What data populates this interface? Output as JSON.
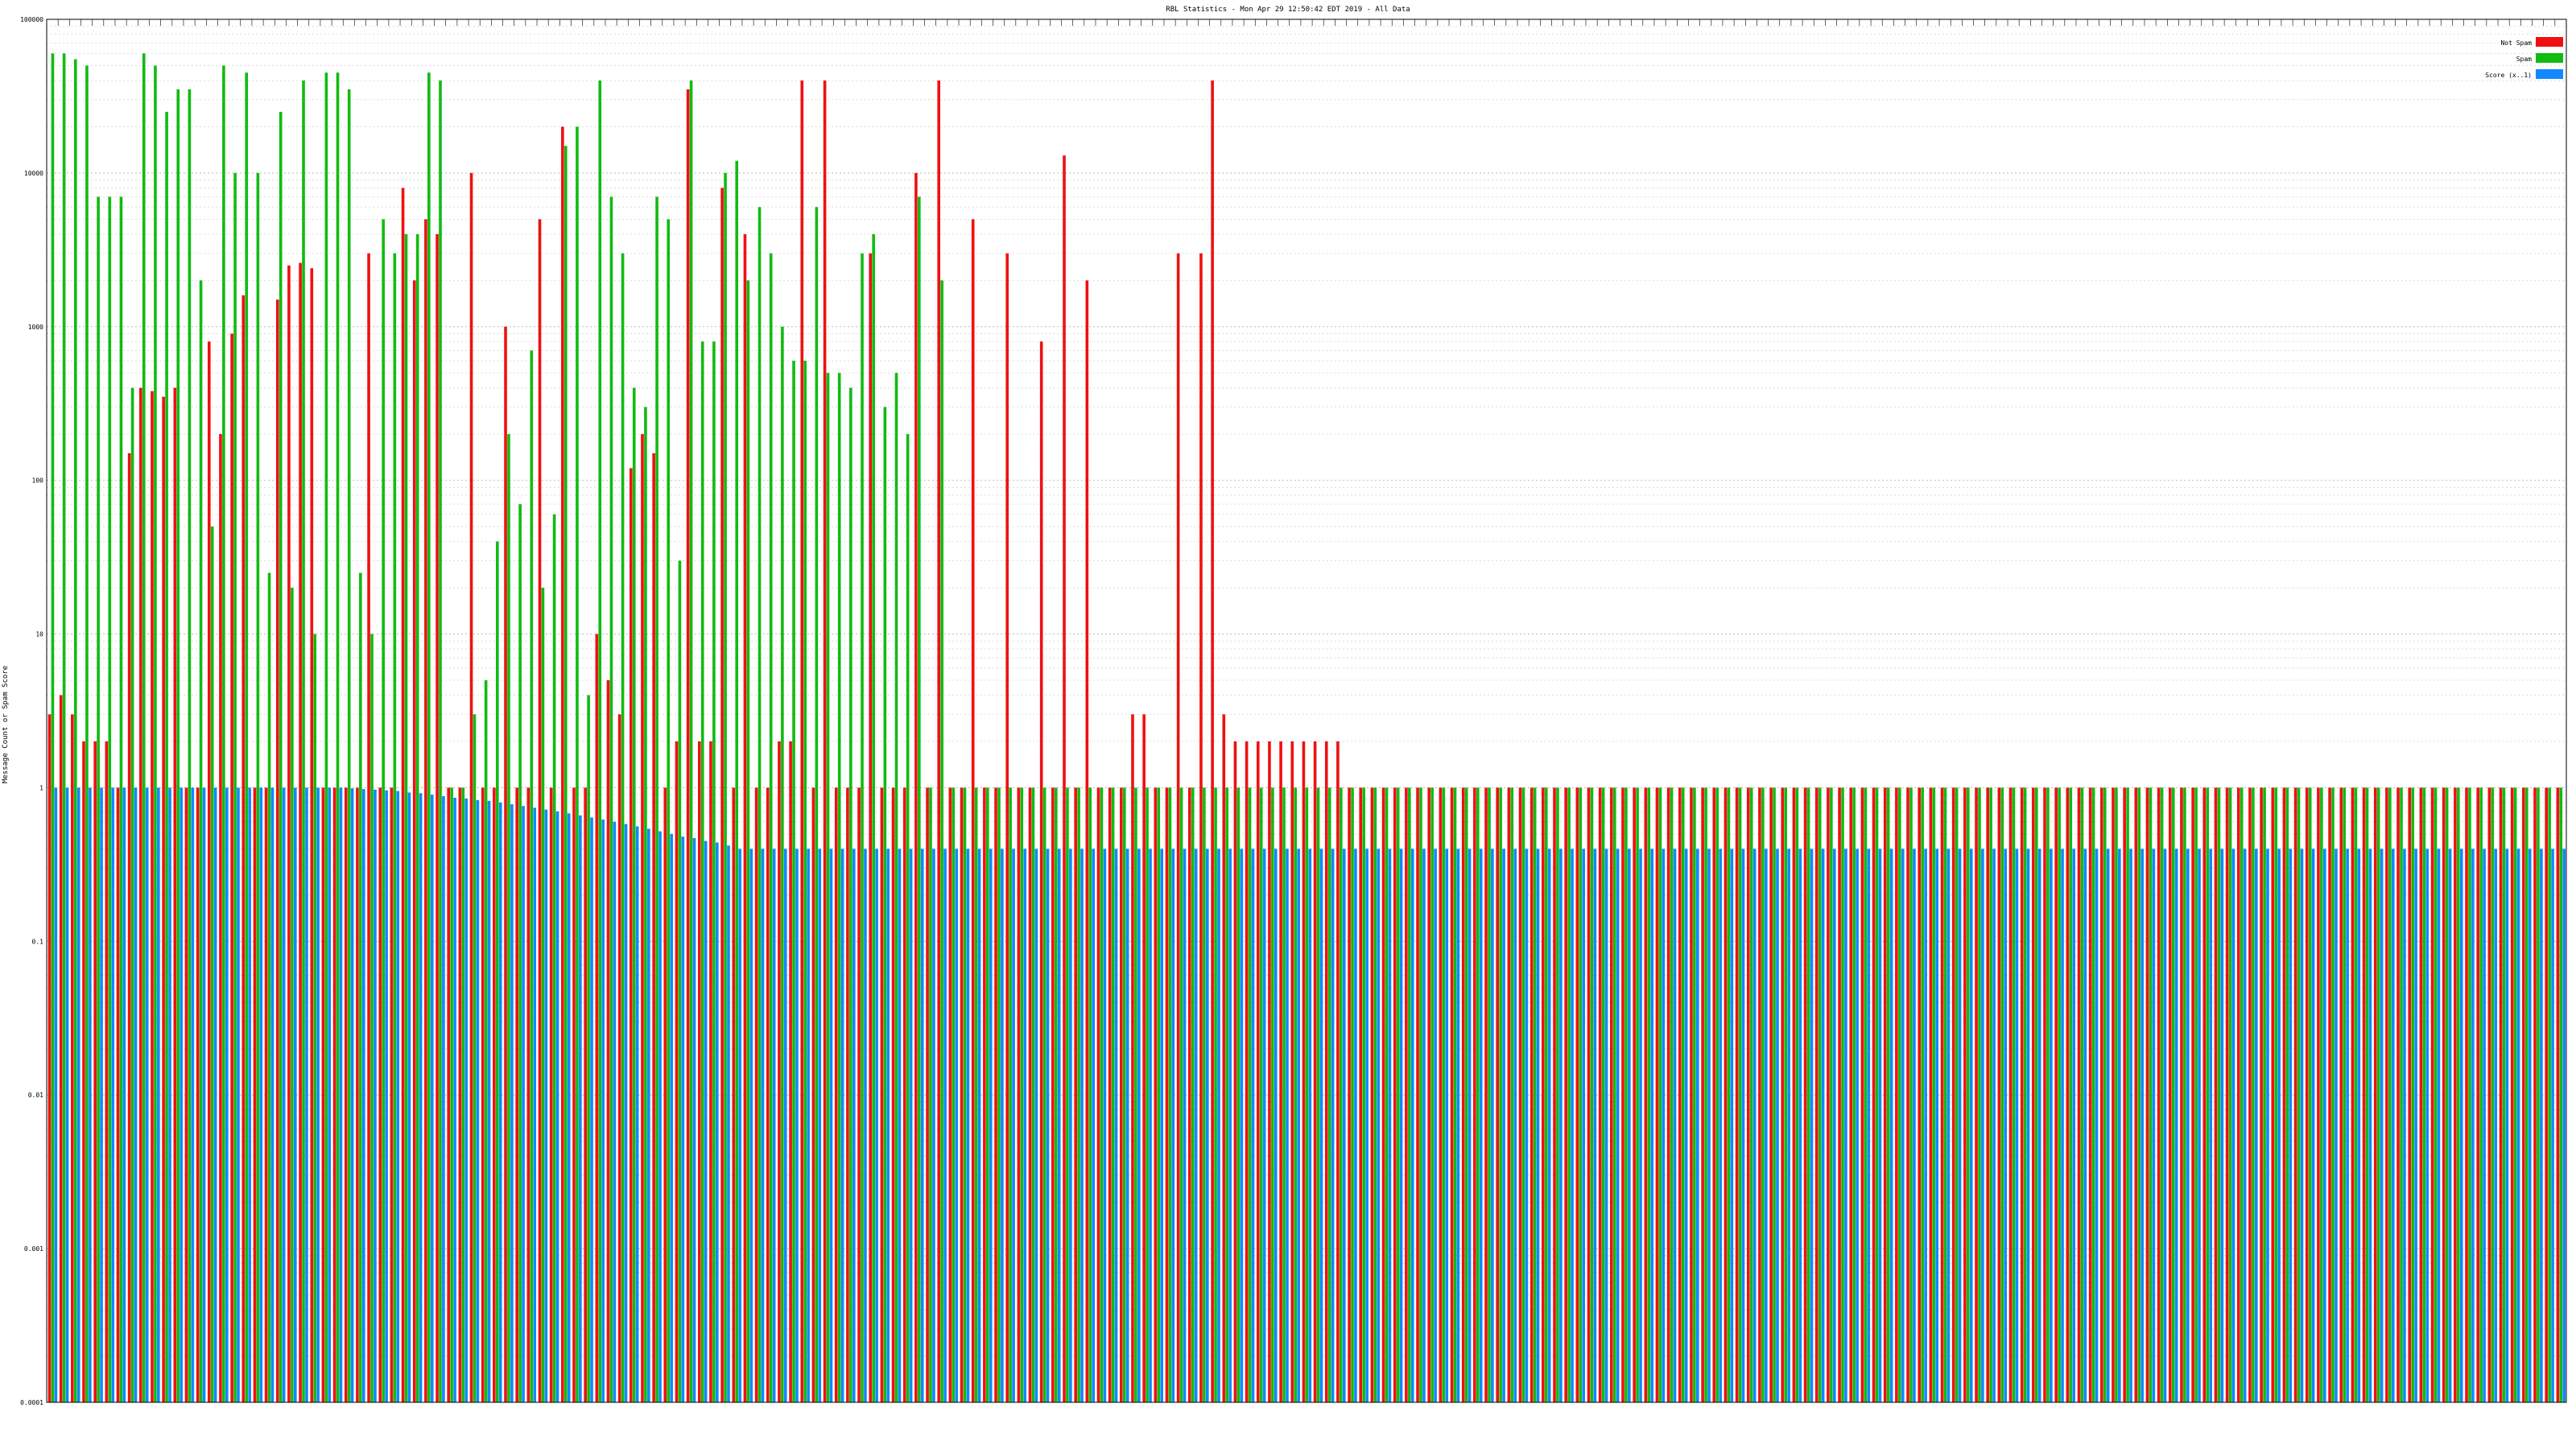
{
  "chart_data": {
    "type": "bar",
    "title": "RBL Statistics - Mon Apr 29 12:50:42 EDT 2019 - All Data",
    "ylabel": "Message Count or Spam Score",
    "yscale": "log",
    "ylim": [
      0.0001,
      100000
    ],
    "y_ticks": [
      "100000",
      "10000",
      "1000",
      "100",
      "10",
      "1",
      "0.1",
      "0.01",
      "0.001",
      "0.0001"
    ],
    "grid": true,
    "legend_position": "top-right",
    "n_categories": 221,
    "colors": {
      "not_spam": "#ee1111",
      "spam": "#11bb11",
      "score": "#1188ff"
    },
    "series": [
      {
        "name": "Not Spam",
        "values": [
          3,
          4,
          3,
          2,
          2,
          2,
          1,
          150,
          400,
          380,
          350,
          400,
          1,
          1,
          800,
          200,
          900,
          1600,
          1,
          1,
          1500,
          2500,
          2600,
          2400,
          1,
          1,
          1,
          1,
          3000,
          1,
          1,
          8000,
          2000,
          5000,
          4000,
          1,
          1,
          10000,
          1,
          1,
          1000,
          1,
          1,
          5000,
          1,
          20000,
          1,
          1,
          10,
          5,
          3,
          120,
          200,
          150,
          1,
          2,
          35000,
          2,
          2,
          8000,
          1,
          4000,
          1,
          1,
          2,
          2,
          40000,
          1,
          40000,
          1,
          1,
          1,
          3000,
          1,
          1,
          1,
          10000,
          1,
          40000,
          1,
          1,
          5000,
          1,
          1,
          3000,
          1,
          1,
          800,
          1,
          13000,
          1,
          2000,
          1,
          1,
          1,
          3,
          3,
          1,
          1,
          3000,
          1,
          3000,
          40000,
          3,
          2,
          2,
          2,
          2,
          2,
          2,
          2,
          2,
          2,
          2,
          1,
          1,
          1,
          1,
          1,
          1,
          1,
          1,
          1,
          1,
          1,
          1,
          1,
          1,
          1,
          1,
          1,
          1,
          1,
          1,
          1,
          1,
          1,
          1,
          1,
          1,
          1,
          1,
          1,
          1,
          1,
          1,
          1,
          1,
          1,
          1,
          1,
          1,
          1,
          1,
          1,
          1,
          1,
          1,
          1,
          1,
          1,
          1,
          1,
          1,
          1,
          1,
          1,
          1,
          1,
          1,
          1,
          1,
          1,
          1,
          1,
          1,
          1,
          1,
          1,
          1,
          1,
          1,
          1,
          1,
          1,
          1,
          1,
          1,
          1,
          1,
          1,
          1,
          1,
          1,
          1,
          1,
          1,
          1,
          1,
          1,
          1,
          1,
          1,
          1,
          1,
          1,
          1,
          1,
          1,
          1,
          1,
          1,
          1,
          1,
          1,
          1,
          1,
          1,
          1,
          1,
          1
        ]
      },
      {
        "name": "Spam",
        "values": [
          60000,
          60000,
          55000,
          50000,
          7000,
          7000,
          7000,
          400,
          60000,
          50000,
          25000,
          35000,
          35000,
          2000,
          50,
          50000,
          10000,
          45000,
          10000,
          25,
          25000,
          20,
          40000,
          10,
          45000,
          45000,
          35000,
          25,
          10,
          5000,
          3000,
          4000,
          4000,
          45000,
          40000,
          1,
          1,
          3,
          5,
          40,
          200,
          70,
          700,
          20,
          60,
          15000,
          20000,
          4,
          40000,
          7000,
          3000,
          400,
          300,
          7000,
          5000,
          30,
          40000,
          800,
          800,
          10000,
          12000,
          2000,
          6000,
          3000,
          1000,
          600,
          600,
          6000,
          500,
          500,
          400,
          3000,
          4000,
          300,
          500,
          200,
          7000,
          1,
          2000,
          1,
          1,
          1,
          1,
          1,
          1,
          1,
          1,
          1,
          1,
          1,
          1,
          1,
          1,
          1,
          1,
          1,
          1,
          1,
          1,
          1,
          1,
          1,
          1,
          1,
          1,
          1,
          1,
          1,
          1,
          1,
          1,
          1,
          1,
          1,
          1,
          1,
          1,
          1,
          1,
          1,
          1,
          1,
          1,
          1,
          1,
          1,
          1,
          1,
          1,
          1,
          1,
          1,
          1,
          1,
          1,
          1,
          1,
          1,
          1,
          1,
          1,
          1,
          1,
          1,
          1,
          1,
          1,
          1,
          1,
          1,
          1,
          1,
          1,
          1,
          1,
          1,
          1,
          1,
          1,
          1,
          1,
          1,
          1,
          1,
          1,
          1,
          1,
          1,
          1,
          1,
          1,
          1,
          1,
          1,
          1,
          1,
          1,
          1,
          1,
          1,
          1,
          1,
          1,
          1,
          1,
          1,
          1,
          1,
          1,
          1,
          1,
          1,
          1,
          1,
          1,
          1,
          1,
          1,
          1,
          1,
          1,
          1,
          1,
          1,
          1,
          1,
          1,
          1,
          1,
          1,
          1,
          1,
          1,
          1,
          1,
          1,
          1,
          1,
          1,
          1,
          1
        ]
      },
      {
        "name": "Score (x..1)",
        "values": [
          1,
          1,
          1,
          1,
          1,
          1,
          1,
          1,
          1,
          1,
          1,
          1,
          1,
          1,
          1,
          1,
          1,
          1,
          1,
          1,
          1,
          1,
          1,
          1,
          1,
          1,
          0.99,
          0.98,
          0.97,
          0.96,
          0.95,
          0.93,
          0.92,
          0.9,
          0.88,
          0.86,
          0.85,
          0.83,
          0.82,
          0.8,
          0.78,
          0.76,
          0.74,
          0.72,
          0.7,
          0.68,
          0.66,
          0.64,
          0.62,
          0.6,
          0.58,
          0.56,
          0.54,
          0.52,
          0.5,
          0.48,
          0.47,
          0.45,
          0.44,
          0.42,
          0.4,
          0.4,
          0.4,
          0.4,
          0.4,
          0.4,
          0.4,
          0.4,
          0.4,
          0.4,
          0.4,
          0.4,
          0.4,
          0.4,
          0.4,
          0.4,
          0.4,
          0.4,
          0.4,
          0.4,
          0.4,
          0.4,
          0.4,
          0.4,
          0.4,
          0.4,
          0.4,
          0.4,
          0.4,
          0.4,
          0.4,
          0.4,
          0.4,
          0.4,
          0.4,
          0.4,
          0.4,
          0.4,
          0.4,
          0.4,
          0.4,
          0.4,
          0.4,
          0.4,
          0.4,
          0.4,
          0.4,
          0.4,
          0.4,
          0.4,
          0.4,
          0.4,
          0.4,
          0.4,
          0.4,
          0.4,
          0.4,
          0.4,
          0.4,
          0.4,
          0.4,
          0.4,
          0.4,
          0.4,
          0.4,
          0.4,
          0.4,
          0.4,
          0.4,
          0.4,
          0.4,
          0.4,
          0.4,
          0.4,
          0.4,
          0.4,
          0.4,
          0.4,
          0.4,
          0.4,
          0.4,
          0.4,
          0.4,
          0.4,
          0.4,
          0.4,
          0.4,
          0.4,
          0.4,
          0.4,
          0.4,
          0.4,
          0.4,
          0.4,
          0.4,
          0.4,
          0.4,
          0.4,
          0.4,
          0.4,
          0.4,
          0.4,
          0.4,
          0.4,
          0.4,
          0.4,
          0.4,
          0.4,
          0.4,
          0.4,
          0.4,
          0.4,
          0.4,
          0.4,
          0.4,
          0.4,
          0.4,
          0.4,
          0.4,
          0.4,
          0.4,
          0.4,
          0.4,
          0.4,
          0.4,
          0.4,
          0.4,
          0.4,
          0.4,
          0.4,
          0.4,
          0.4,
          0.4,
          0.4,
          0.4,
          0.4,
          0.4,
          0.4,
          0.4,
          0.4,
          0.4,
          0.4,
          0.4,
          0.4,
          0.4,
          0.4,
          0.4,
          0.4,
          0.4,
          0.4,
          0.4,
          0.4,
          0.4,
          0.4,
          0.4,
          0.4,
          0.4,
          0.4,
          0.4,
          0.4,
          0.4
        ]
      }
    ]
  }
}
